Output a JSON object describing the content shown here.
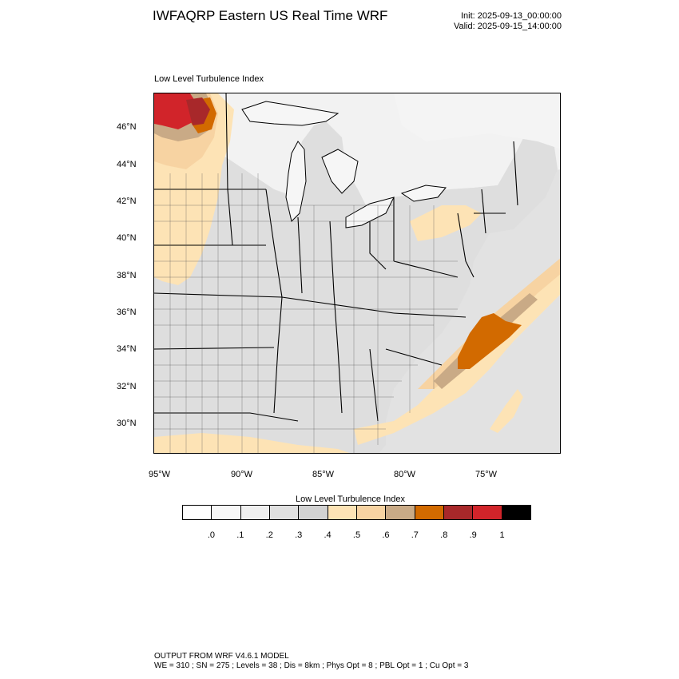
{
  "header": {
    "title": "IWFAQRP Eastern US Real Time WRF",
    "init": "Init: 2025-09-13_00:00:00",
    "valid": "Valid: 2025-09-15_14:00:00"
  },
  "map": {
    "subtitle": "Low Level Turbulence Index",
    "lat_labels": [
      "46°N",
      "44°N",
      "42°N",
      "40°N",
      "38°N",
      "36°N",
      "34°N",
      "32°N",
      "30°N"
    ],
    "lon_labels": [
      "95°W",
      "90°W",
      "85°W",
      "80°W",
      "75°W"
    ],
    "colors": {
      "land_low": "#dcdcdc",
      "land_lower": "#ececec",
      "water": "#f4f4f4",
      "low_moderate": "#fde3b5",
      "moderate": "#f7d3a2",
      "elevated": "#c9aa86",
      "high": "#d26a00",
      "very_high": "#a8282a",
      "extreme": "#d1242a",
      "borders": "#000000"
    }
  },
  "colorbar": {
    "title": "Low Level Turbulence Index",
    "colors": [
      "#ffffff",
      "#f7f7f7",
      "#efefef",
      "#e0e0e0",
      "#d2d2d2",
      "#fde3b5",
      "#f7d3a2",
      "#c9aa86",
      "#d26a00",
      "#a8282a",
      "#d1242a",
      "#000000"
    ],
    "labels": [
      ".0",
      ".1",
      ".2",
      ".3",
      ".4",
      ".5",
      ".6",
      ".7",
      ".8",
      ".9",
      "1"
    ]
  },
  "footer": {
    "line1": "OUTPUT FROM WRF V4.6.1 MODEL",
    "line2": "WE = 310 ; SN = 275 ; Levels = 38 ; Dis = 8km ; Phys Opt = 8 ; PBL Opt = 1 ; Cu Opt = 3"
  }
}
